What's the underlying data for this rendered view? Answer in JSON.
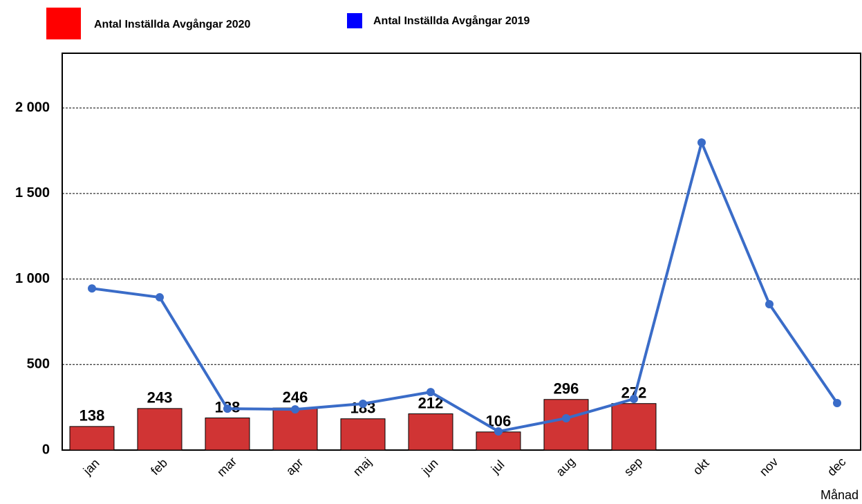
{
  "chart_data": {
    "type": "bar",
    "categories": [
      "jan",
      "feb",
      "mar",
      "apr",
      "maj",
      "jun",
      "jul",
      "aug",
      "sep",
      "okt",
      "nov",
      "dec"
    ],
    "series": [
      {
        "name": "Antal Inställda Avgångar 2020",
        "type": "bar",
        "color": "#d03434",
        "legend_color": "#ff0000",
        "values": [
          138,
          243,
          188,
          246,
          183,
          212,
          106,
          296,
          272,
          null,
          null,
          null
        ]
      },
      {
        "name": "Antal Inställda Avgångar 2019",
        "type": "line",
        "color": "#3a6cc8",
        "legend_color": "#0000ff",
        "values": [
          945,
          893,
          242,
          238,
          271,
          339,
          109,
          186,
          299,
          1798,
          853,
          275
        ]
      }
    ],
    "x_label": "Månad",
    "ylim": [
      0,
      2320
    ],
    "yticks": [
      0,
      500,
      {
        "value": 1000,
        "label": "1 000"
      },
      {
        "value": 1500,
        "label": "1 500"
      },
      {
        "value": 2000,
        "label": "2 000"
      }
    ],
    "grid": true
  }
}
